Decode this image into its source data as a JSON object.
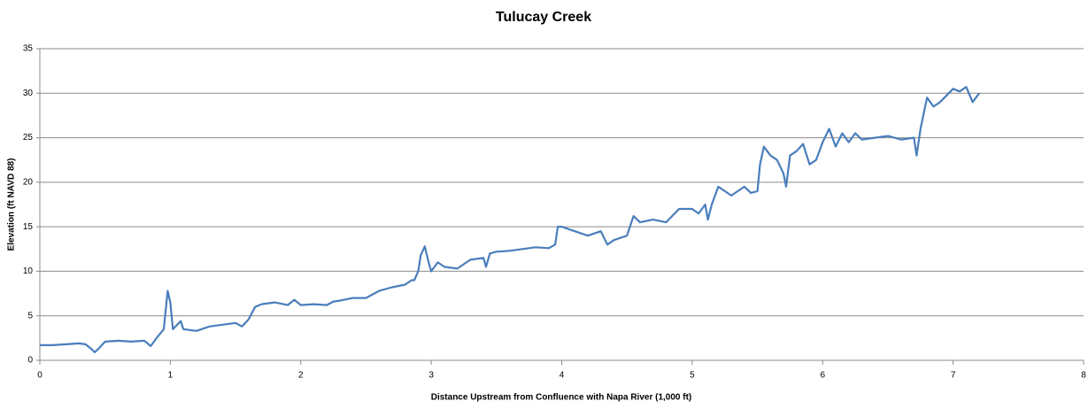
{
  "chart_data": {
    "type": "line",
    "title": "Tulucay Creek",
    "x_label": "Distance Upstream from Confluence with Napa River (1,000 ft)",
    "y_label": "Elevation (ft NAVD 88)",
    "xlim": [
      0,
      8
    ],
    "xticks": [
      0,
      1,
      2,
      3,
      4,
      5,
      6,
      7,
      8
    ],
    "ylim": [
      0,
      35
    ],
    "yticks": [
      0,
      5,
      10,
      15,
      20,
      25,
      30,
      35
    ],
    "grid": true,
    "series": [
      {
        "name": "Tulucay Creek",
        "color": "#4a7ebb",
        "x": [
          0,
          0.1,
          0.2,
          0.3,
          0.35,
          0.4,
          0.42,
          0.45,
          0.5,
          0.6,
          0.7,
          0.8,
          0.85,
          0.9,
          0.95,
          0.98,
          1.0,
          1.02,
          1.08,
          1.1,
          1.2,
          1.3,
          1.4,
          1.5,
          1.55,
          1.6,
          1.65,
          1.7,
          1.8,
          1.9,
          1.95,
          2.0,
          2.1,
          2.2,
          2.25,
          2.3,
          2.4,
          2.5,
          2.6,
          2.65,
          2.7,
          2.8,
          2.85,
          2.87,
          2.9,
          2.92,
          2.95,
          2.98,
          3.0,
          3.05,
          3.1,
          3.2,
          3.3,
          3.4,
          3.42,
          3.45,
          3.5,
          3.6,
          3.7,
          3.8,
          3.9,
          3.95,
          3.97,
          4.0,
          4.1,
          4.2,
          4.3,
          4.35,
          4.4,
          4.5,
          4.55,
          4.6,
          4.7,
          4.8,
          4.9,
          5.0,
          5.05,
          5.1,
          5.12,
          5.15,
          5.2,
          5.25,
          5.3,
          5.4,
          5.45,
          5.5,
          5.52,
          5.55,
          5.6,
          5.65,
          5.7,
          5.72,
          5.75,
          5.8,
          5.85,
          5.9,
          5.95,
          6.0,
          6.05,
          6.1,
          6.15,
          6.2,
          6.25,
          6.3,
          6.4,
          6.5,
          6.6,
          6.7,
          6.72,
          6.75,
          6.8,
          6.85,
          6.9,
          7.0,
          7.05,
          7.1,
          7.15,
          7.2
        ],
        "values": [
          1.7,
          1.7,
          1.8,
          1.9,
          1.8,
          1.2,
          0.9,
          1.3,
          2.1,
          2.2,
          2.1,
          2.2,
          1.6,
          2.6,
          3.5,
          7.8,
          6.5,
          3.5,
          4.4,
          3.5,
          3.3,
          3.8,
          4.0,
          4.2,
          3.8,
          4.6,
          6.0,
          6.3,
          6.5,
          6.2,
          6.8,
          6.2,
          6.3,
          6.2,
          6.6,
          6.7,
          7.0,
          7.0,
          7.8,
          8.0,
          8.2,
          8.5,
          9.0,
          9.0,
          10.0,
          11.8,
          12.8,
          11.0,
          10.0,
          11.0,
          10.5,
          10.3,
          11.3,
          11.5,
          10.5,
          12.0,
          12.2,
          12.3,
          12.5,
          12.7,
          12.6,
          13.0,
          15.0,
          15.0,
          14.5,
          14.0,
          14.5,
          13.0,
          13.5,
          14.0,
          16.2,
          15.5,
          15.8,
          15.5,
          17.0,
          17.0,
          16.5,
          17.5,
          15.8,
          17.5,
          19.5,
          19.0,
          18.5,
          19.5,
          18.8,
          19.0,
          22.0,
          24.0,
          23.0,
          22.5,
          21.0,
          19.5,
          23.0,
          23.5,
          24.3,
          22.0,
          22.5,
          24.5,
          26.0,
          24.0,
          25.5,
          24.5,
          25.5,
          24.8,
          25.0,
          25.2,
          24.8,
          25.0,
          23.0,
          26.0,
          29.5,
          28.5,
          29.0,
          30.5,
          30.2,
          30.7,
          29.0,
          30.0
        ]
      }
    ]
  }
}
